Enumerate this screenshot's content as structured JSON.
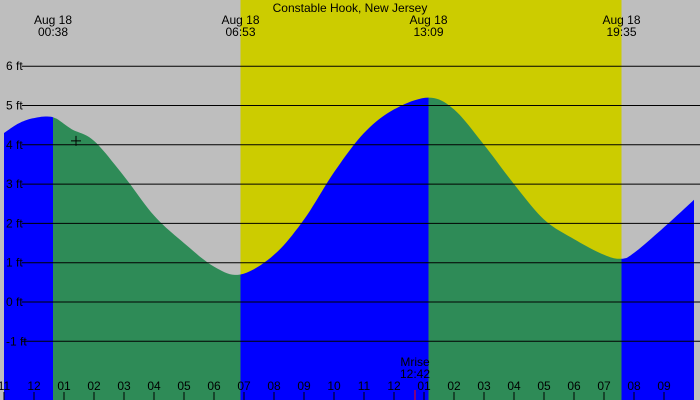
{
  "chart_data": {
    "type": "area",
    "title": "Constable Hook, New Jersey",
    "xlabel": "",
    "ylabel": "",
    "y_unit": "ft",
    "ylim": [
      -2,
      7
    ],
    "y_ticks": [
      6,
      5,
      4,
      3,
      2,
      1,
      0,
      -1
    ],
    "y_tick_labels": [
      "6 ft",
      "5 ft",
      "4 ft",
      "3 ft",
      "2 ft",
      "1 ft",
      "0 ft",
      "-1 ft"
    ],
    "x_range_hours": [
      23.0,
      33.33
    ],
    "x_tick_hours": [
      23,
      24,
      25,
      26,
      27,
      28,
      29,
      30,
      31,
      32,
      33,
      34,
      35,
      36,
      37,
      38,
      39,
      40,
      41,
      42,
      43,
      44,
      45
    ],
    "x_tick_labels": [
      "11",
      "12",
      "01",
      "02",
      "03",
      "04",
      "05",
      "06",
      "07",
      "08",
      "09",
      "10",
      "11",
      "12",
      "01",
      "02",
      "03",
      "04",
      "05",
      "06",
      "07",
      "08",
      "09"
    ],
    "daylight_hours": [
      6.883,
      19.583
    ],
    "moonrise": {
      "label": "Mrise",
      "time": "12:42",
      "hour": 12.7
    },
    "extremes": [
      {
        "date": "Aug 18",
        "time": "00:38",
        "hour": 0.633,
        "height": 4.7,
        "type": "high"
      },
      {
        "date": "Aug 18",
        "time": "06:53",
        "hour": 6.883,
        "height": 0.7,
        "type": "low"
      },
      {
        "date": "Aug 18",
        "time": "13:09",
        "hour": 13.15,
        "height": 5.2,
        "type": "high"
      },
      {
        "date": "Aug 18",
        "time": "19:35",
        "hour": 19.583,
        "height": 1.1,
        "type": "low"
      }
    ],
    "series": [
      {
        "values": [
          [
            -1.0,
            4.3
          ],
          [
            -0.5,
            4.55
          ],
          [
            0.0,
            4.68
          ],
          [
            0.633,
            4.7
          ],
          [
            1.25,
            4.4
          ],
          [
            2.0,
            4.1
          ],
          [
            3.0,
            3.2
          ],
          [
            4.0,
            2.2
          ],
          [
            5.0,
            1.5
          ],
          [
            6.0,
            0.9
          ],
          [
            6.883,
            0.7
          ],
          [
            8.0,
            1.2
          ],
          [
            9.0,
            2.1
          ],
          [
            10.0,
            3.3
          ],
          [
            11.0,
            4.3
          ],
          [
            12.0,
            4.9
          ],
          [
            13.15,
            5.2
          ],
          [
            14.0,
            4.9
          ],
          [
            15.0,
            4.0
          ],
          [
            16.0,
            3.0
          ],
          [
            17.0,
            2.1
          ],
          [
            18.0,
            1.6
          ],
          [
            19.0,
            1.2
          ],
          [
            19.583,
            1.1
          ],
          [
            20.0,
            1.25
          ],
          [
            21.0,
            1.9
          ],
          [
            22.0,
            2.6
          ]
        ]
      }
    ],
    "marker": {
      "hour": 1.4,
      "height": 4.1
    },
    "grid": true,
    "colors": {
      "night": "#bebebe",
      "day": "#cccc00",
      "rising": "#0000ff",
      "falling": "#2e8b57",
      "gridline": "#000000",
      "moon_tick": "#ff0000"
    }
  }
}
